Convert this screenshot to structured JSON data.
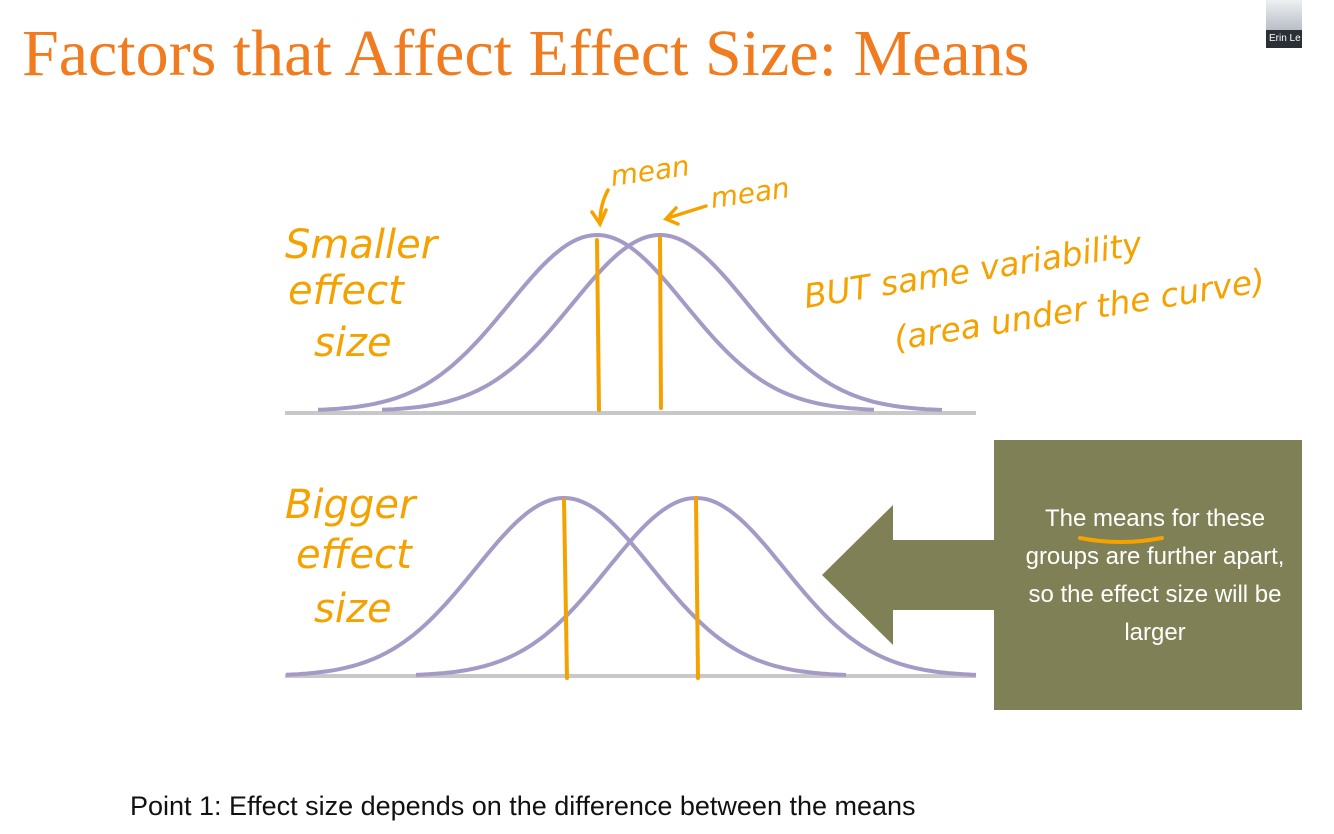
{
  "slide": {
    "title": "Factors that Affect Effect Size: Means",
    "footer": "Point 1: Effect size depends on the difference between the means"
  },
  "callout": {
    "text": "The means for these groups are further apart, so the effect size will be larger",
    "underlined_word": "means"
  },
  "annotations": {
    "smaller_label": [
      "Smaller",
      "effect",
      "size"
    ],
    "bigger_label": [
      "Bigger",
      "effect",
      "size"
    ],
    "mean_label_left": "mean",
    "mean_label_right": "mean",
    "same_variability": [
      "BUT same variability",
      "(area under the curve)"
    ]
  },
  "participant": {
    "name": "Erin Le"
  },
  "colors": {
    "title": "#f07c1f",
    "curve": "#a59ac6",
    "ink": "#f5a200",
    "callout_bg": "#7f8055"
  }
}
